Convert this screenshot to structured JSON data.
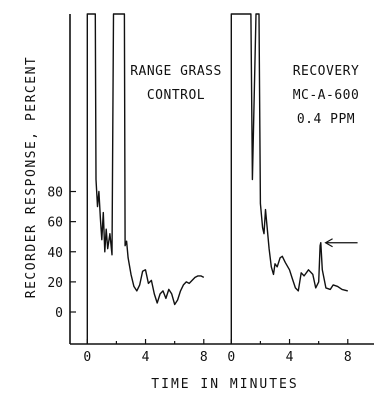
{
  "chart_data": {
    "type": "line",
    "title": "",
    "xlabel": "TIME IN MINUTES",
    "ylabel": "RECORDER RESPONSE, PERCENT",
    "ylim": [
      -8,
      100
    ],
    "yticks": [
      0,
      20,
      40,
      60,
      80
    ],
    "grid": false,
    "panels": [
      {
        "name": "range-grass-control",
        "annotation_lines": [
          "RANGE GRASS",
          "CONTROL"
        ],
        "xlim": [
          -0.5,
          9.8
        ],
        "xticks": [
          0,
          4,
          8
        ],
        "series": [
          {
            "x": [
              0,
              0,
              0.05,
              0.08,
              0.35,
              0.55,
              0.6,
              0.7,
              0.8,
              0.9,
              1.0,
              1.1,
              1.2,
              1.3,
              1.4,
              1.55,
              1.7,
              1.8,
              1.9,
              2.0,
              2.1,
              2.15,
              2.55,
              2.6,
              2.7,
              2.8,
              3.0,
              3.2,
              3.4,
              3.6,
              3.8,
              4.0,
              4.2,
              4.4,
              4.6,
              4.8,
              5.0,
              5.2,
              5.4,
              5.6,
              5.8,
              6.0,
              6.2,
              6.4,
              6.6,
              6.8,
              7.0,
              7.2,
              7.4,
              7.6,
              7.8,
              8.0
            ],
            "y": [
              -8,
              100,
              100,
              100,
              100,
              100,
              88,
              70,
              80,
              62,
              48,
              66,
              40,
              55,
              42,
              52,
              38,
              100,
              100,
              100,
              100,
              100,
              100,
              44,
              47,
              36,
              25,
              17,
              14,
              18,
              27,
              28,
              19,
              21,
              12,
              6,
              12,
              14,
              9,
              15,
              12,
              5,
              8,
              14,
              18,
              20,
              19,
              21,
              23,
              24,
              24,
              23
            ]
          }
        ]
      },
      {
        "name": "recovery-mc-a-600",
        "annotation_lines": [
          "RECOVERY",
          "MC-A-600",
          "0.4 PPM"
        ],
        "marker": {
          "x": 6.2,
          "y": 46,
          "type": "arrow-left"
        },
        "xlim": [
          -0.5,
          9.8
        ],
        "xticks": [
          0,
          4,
          8
        ],
        "series": [
          {
            "x": [
              0,
              0,
              0.05,
              1.2,
              1.35,
              1.45,
              1.7,
              1.9,
              2.0,
              2.15,
              2.25,
              2.35,
              2.6,
              2.75,
              2.9,
              3.0,
              3.15,
              3.35,
              3.5,
              3.7,
              4.0,
              4.2,
              4.4,
              4.6,
              4.8,
              5.0,
              5.3,
              5.6,
              5.8,
              6.0,
              6.1,
              6.15,
              6.25,
              6.5,
              6.8,
              7.0,
              7.3,
              7.6,
              8.0
            ],
            "y": [
              -8,
              100,
              100,
              100,
              100,
              88,
              100,
              100,
              72,
              56,
              52,
              68,
              42,
              30,
              25,
              32,
              30,
              36,
              37,
              33,
              28,
              22,
              16,
              14,
              26,
              24,
              28,
              25,
              16,
              20,
              44,
              46,
              28,
              16,
              15,
              18,
              17,
              15,
              14
            ]
          }
        ]
      }
    ]
  }
}
